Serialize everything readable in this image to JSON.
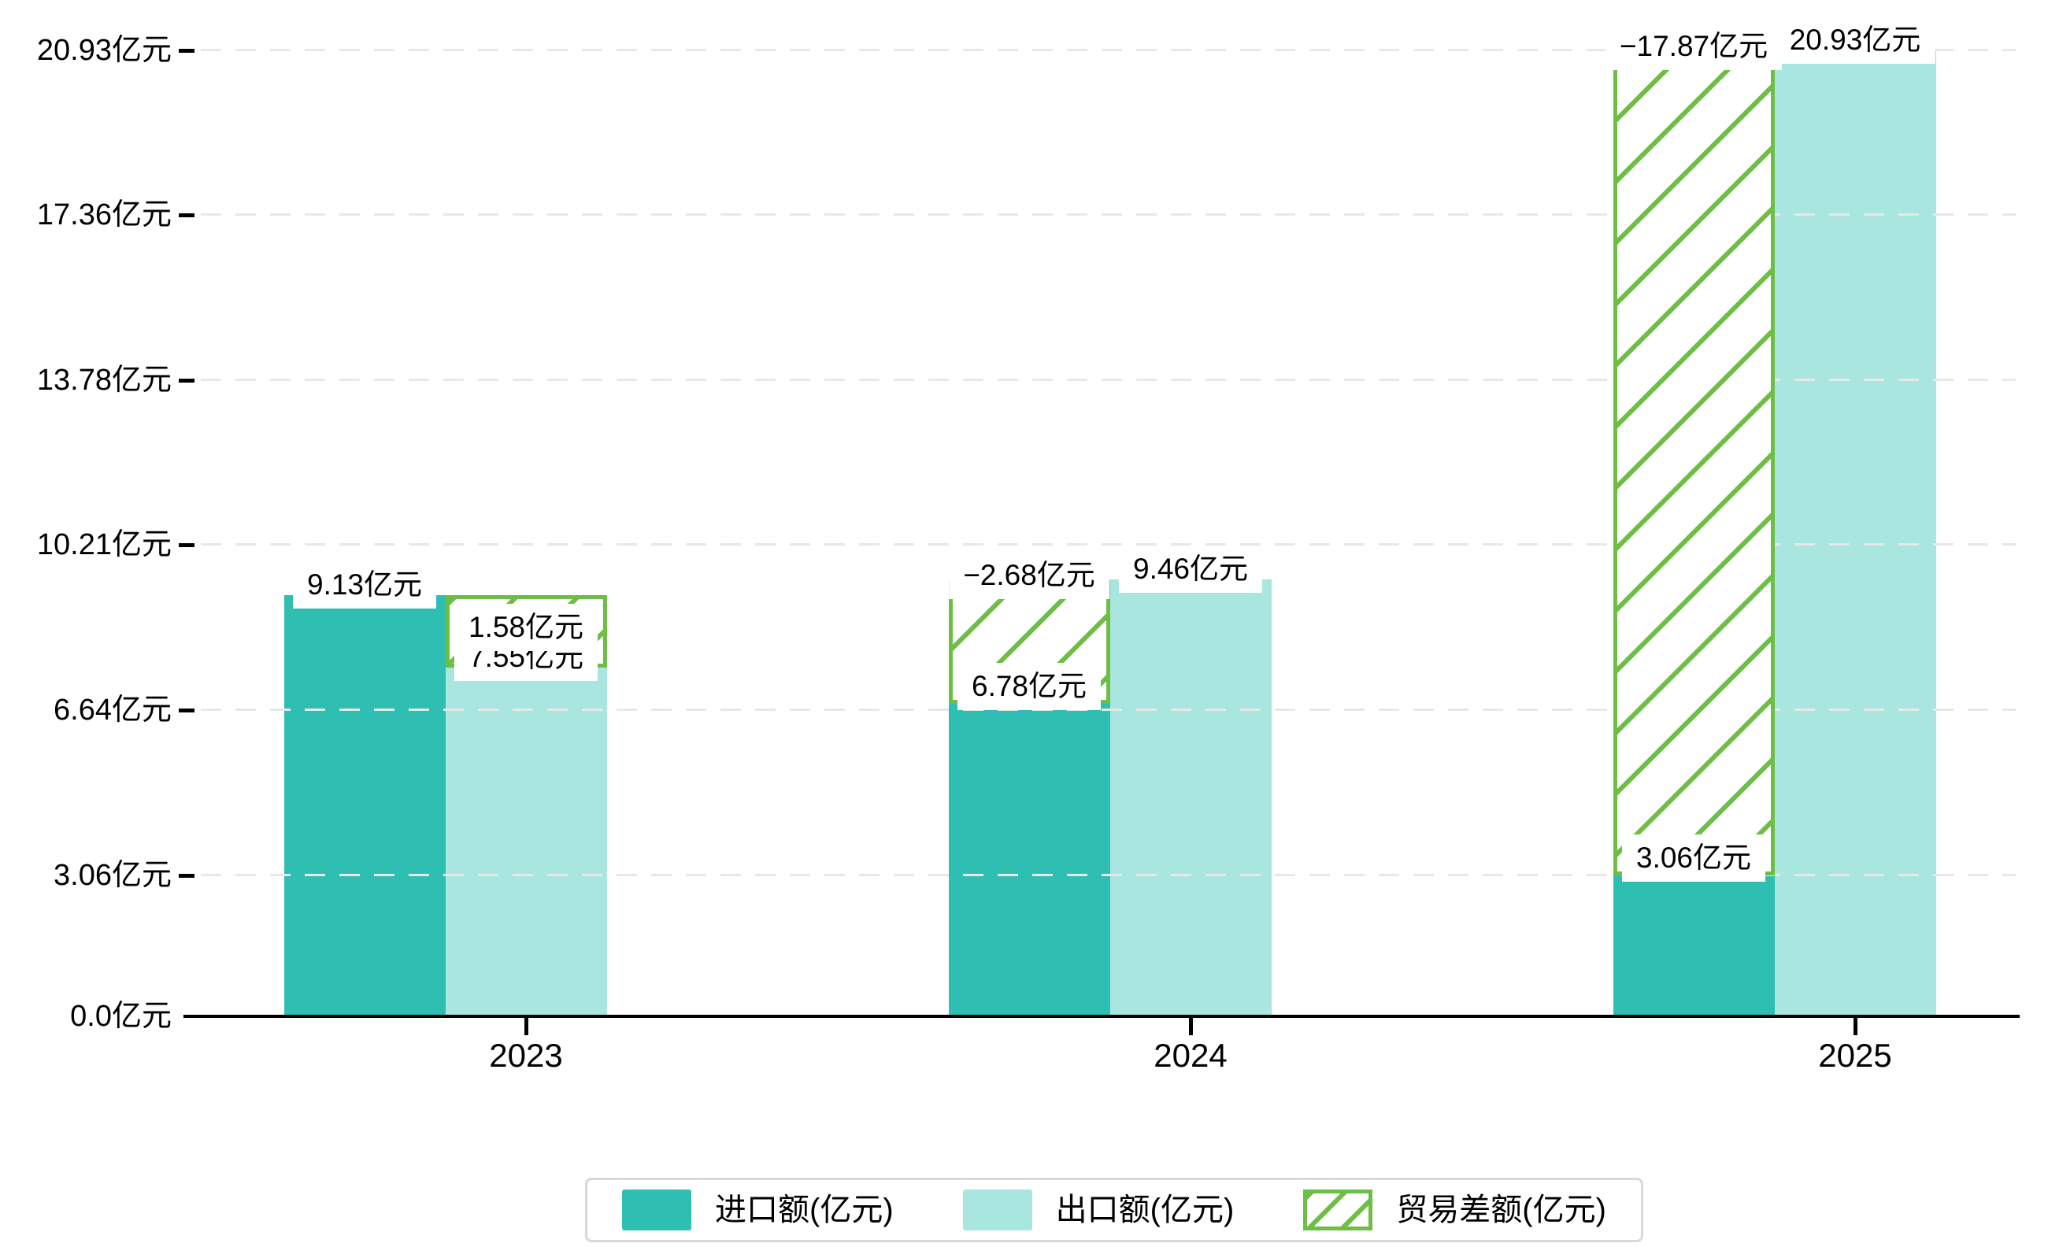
{
  "chart_data": {
    "type": "bar",
    "title": "",
    "categories": [
      "2023",
      "2024",
      "2025"
    ],
    "series": [
      {
        "name": "进口额(亿元)",
        "role": "import",
        "color": "#2fbfb2",
        "values": [
          9.13,
          6.78,
          3.06
        ],
        "value_labels": [
          "9.13亿元",
          "6.78亿元",
          "3.06亿元"
        ]
      },
      {
        "name": "出口额(亿元)",
        "role": "export",
        "color": "#a9e6df",
        "values": [
          7.55,
          9.46,
          20.93
        ],
        "value_labels": [
          "7.55亿元",
          "9.46亿元",
          "20.93亿元"
        ]
      },
      {
        "name": "贸易差额(亿元)",
        "role": "trade-balance",
        "color": "#6cbe45",
        "pattern": "diagonal-hatch",
        "values": [
          1.58,
          -2.68,
          -17.87
        ],
        "value_labels": [
          "1.58亿元",
          "−2.68亿元",
          "−17.87亿元"
        ]
      }
    ],
    "y_axis": {
      "unit": "亿元",
      "tick_values": [
        0,
        3.06,
        6.64,
        10.21,
        13.78,
        17.36,
        20.93
      ],
      "tick_labels": [
        "0.0亿元",
        "3.06亿元",
        "6.64亿元",
        "10.21亿元",
        "13.78亿元",
        "17.36亿元",
        "20.93亿元"
      ],
      "max": 20.93,
      "grid": "dashed"
    },
    "x_axis": {
      "tick_labels": [
        "2023",
        "2024",
        "2025"
      ]
    },
    "legend_position": "bottom"
  },
  "colors": {
    "import_bar": "#2fbfb2",
    "export_bar": "#a9e6df",
    "balance_green": "#6cbe45",
    "gridline": "#e8e8e8",
    "axis": "#000000",
    "text": "#000000",
    "legend_border": "#d9d9d9",
    "background": "#ffffff"
  }
}
